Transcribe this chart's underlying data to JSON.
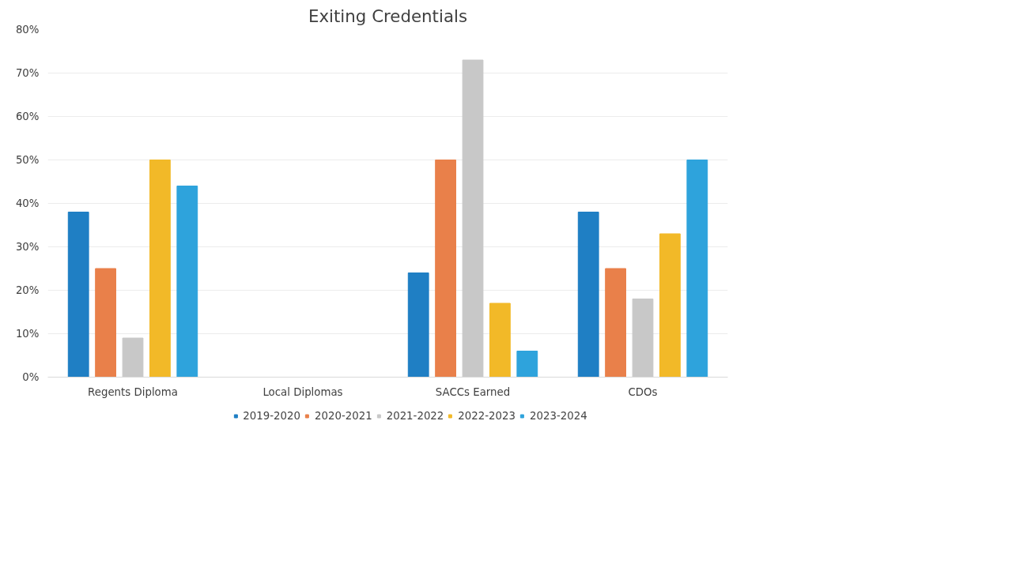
{
  "chart_data": {
    "type": "bar",
    "title": "Exiting Credentials",
    "categories": [
      "Regents Diploma",
      "Local Diplomas",
      "SACCs Earned",
      "CDOs"
    ],
    "series": [
      {
        "name": "2019-2020",
        "color": "#1f7fc4",
        "values": [
          38,
          0,
          24,
          38
        ]
      },
      {
        "name": "2020-2021",
        "color": "#e9804a",
        "values": [
          25,
          0,
          50,
          25
        ]
      },
      {
        "name": "2021-2022",
        "color": "#c8c8c8",
        "values": [
          9,
          0,
          73,
          18
        ]
      },
      {
        "name": "2022-2023",
        "color": "#f2b928",
        "values": [
          50,
          0,
          17,
          33
        ]
      },
      {
        "name": "2023-2024",
        "color": "#2ea3dc",
        "values": [
          44,
          0,
          6,
          50
        ]
      }
    ],
    "ylim": [
      0,
      80
    ],
    "yticks": [
      {
        "value": 0,
        "label": "0%"
      },
      {
        "value": 10,
        "label": "10%"
      },
      {
        "value": 20,
        "label": "20%"
      },
      {
        "value": 30,
        "label": "30%"
      },
      {
        "value": 40,
        "label": "40%"
      },
      {
        "value": 50,
        "label": "50%"
      },
      {
        "value": 60,
        "label": "60%"
      },
      {
        "value": 70,
        "label": "70%"
      },
      {
        "value": 80,
        "label": "80%"
      }
    ],
    "grid": "y",
    "legend": "bottom"
  }
}
